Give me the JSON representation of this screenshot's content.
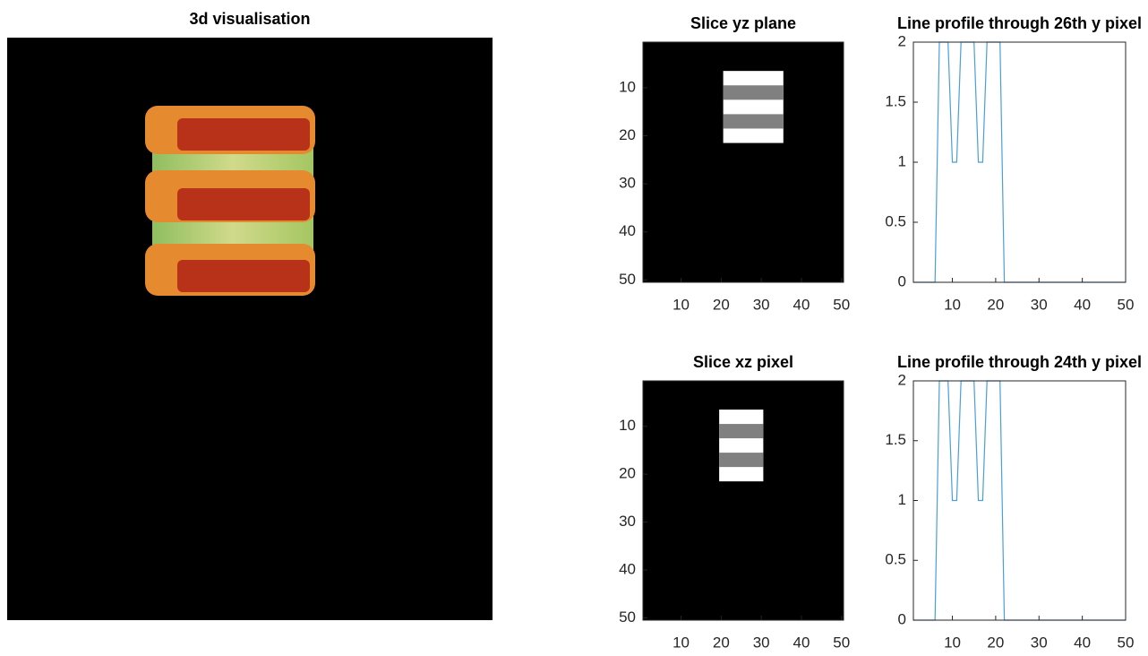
{
  "chart_data": [
    {
      "type": "volume",
      "title": "3d visualisation"
    },
    {
      "type": "image",
      "title": "Slice yz plane",
      "xlim": [
        0.5,
        50.5
      ],
      "ylim": [
        0.5,
        50.5
      ],
      "ydir": "reverse",
      "xticks": [
        10,
        20,
        30,
        40,
        50
      ],
      "yticks": [
        10,
        20,
        30,
        40,
        50
      ],
      "clim": [
        0,
        2
      ],
      "background": 0,
      "blocks": [
        {
          "x": [
            20.5,
            35.5
          ],
          "y": [
            6.5,
            21.5
          ],
          "value": 2
        },
        {
          "x": [
            20.5,
            35.5
          ],
          "y": [
            9.5,
            12.5
          ],
          "value": 1
        },
        {
          "x": [
            20.5,
            35.5
          ],
          "y": [
            15.5,
            18.5
          ],
          "value": 1
        }
      ]
    },
    {
      "type": "line",
      "title": "Line profile through 26th y pixel",
      "xlim": [
        1,
        50
      ],
      "ylim": [
        0,
        2
      ],
      "xticks": [
        10,
        20,
        30,
        40,
        50
      ],
      "yticks": [
        0,
        0.5,
        1,
        1.5,
        2
      ],
      "color": "#4a9fd8",
      "x": [
        1,
        2,
        3,
        4,
        5,
        6,
        7,
        8,
        9,
        10,
        11,
        12,
        13,
        14,
        15,
        16,
        17,
        18,
        19,
        20,
        21,
        22,
        23,
        24,
        25,
        26,
        27,
        28,
        29,
        30,
        31,
        32,
        33,
        34,
        35,
        36,
        37,
        38,
        39,
        40,
        41,
        42,
        43,
        44,
        45,
        46,
        47,
        48,
        49,
        50
      ],
      "values": [
        0,
        0,
        0,
        0,
        0,
        0,
        2,
        2,
        2,
        1,
        1,
        2,
        2,
        2,
        2,
        1,
        1,
        2,
        2,
        2,
        2,
        0,
        0,
        0,
        0,
        0,
        0,
        0,
        0,
        0,
        0,
        0,
        0,
        0,
        0,
        0,
        0,
        0,
        0,
        0,
        0,
        0,
        0,
        0,
        0,
        0,
        0,
        0,
        0,
        0
      ]
    },
    {
      "type": "image",
      "title": "Slice xz pixel",
      "xlim": [
        0.5,
        50.5
      ],
      "ylim": [
        0.5,
        50.5
      ],
      "ydir": "reverse",
      "xticks": [
        10,
        20,
        30,
        40,
        50
      ],
      "yticks": [
        10,
        20,
        30,
        40,
        50
      ],
      "clim": [
        0,
        2
      ],
      "background": 0,
      "blocks": [
        {
          "x": [
            19.5,
            30.5
          ],
          "y": [
            6.5,
            21.5
          ],
          "value": 2
        },
        {
          "x": [
            19.5,
            30.5
          ],
          "y": [
            9.5,
            12.5
          ],
          "value": 1
        },
        {
          "x": [
            19.5,
            30.5
          ],
          "y": [
            15.5,
            18.5
          ],
          "value": 1
        }
      ]
    },
    {
      "type": "line",
      "title": "Line profile through 24th y pixel",
      "xlim": [
        1,
        50
      ],
      "ylim": [
        0,
        2
      ],
      "xticks": [
        10,
        20,
        30,
        40,
        50
      ],
      "yticks": [
        0,
        0.5,
        1,
        1.5,
        2
      ],
      "color": "#4a9fd8",
      "x": [
        1,
        2,
        3,
        4,
        5,
        6,
        7,
        8,
        9,
        10,
        11,
        12,
        13,
        14,
        15,
        16,
        17,
        18,
        19,
        20,
        21,
        22,
        23,
        24,
        25,
        26,
        27,
        28,
        29,
        30,
        31,
        32,
        33,
        34,
        35,
        36,
        37,
        38,
        39,
        40,
        41,
        42,
        43,
        44,
        45,
        46,
        47,
        48,
        49,
        50
      ],
      "values": [
        0,
        0,
        0,
        0,
        0,
        0,
        2,
        2,
        2,
        1,
        1,
        2,
        2,
        2,
        2,
        1,
        1,
        2,
        2,
        2,
        2,
        0,
        0,
        0,
        0,
        0,
        0,
        0,
        0,
        0,
        0,
        0,
        0,
        0,
        0,
        0,
        0,
        0,
        0,
        0,
        0,
        0,
        0,
        0,
        0,
        0,
        0,
        0,
        0,
        0
      ]
    }
  ]
}
